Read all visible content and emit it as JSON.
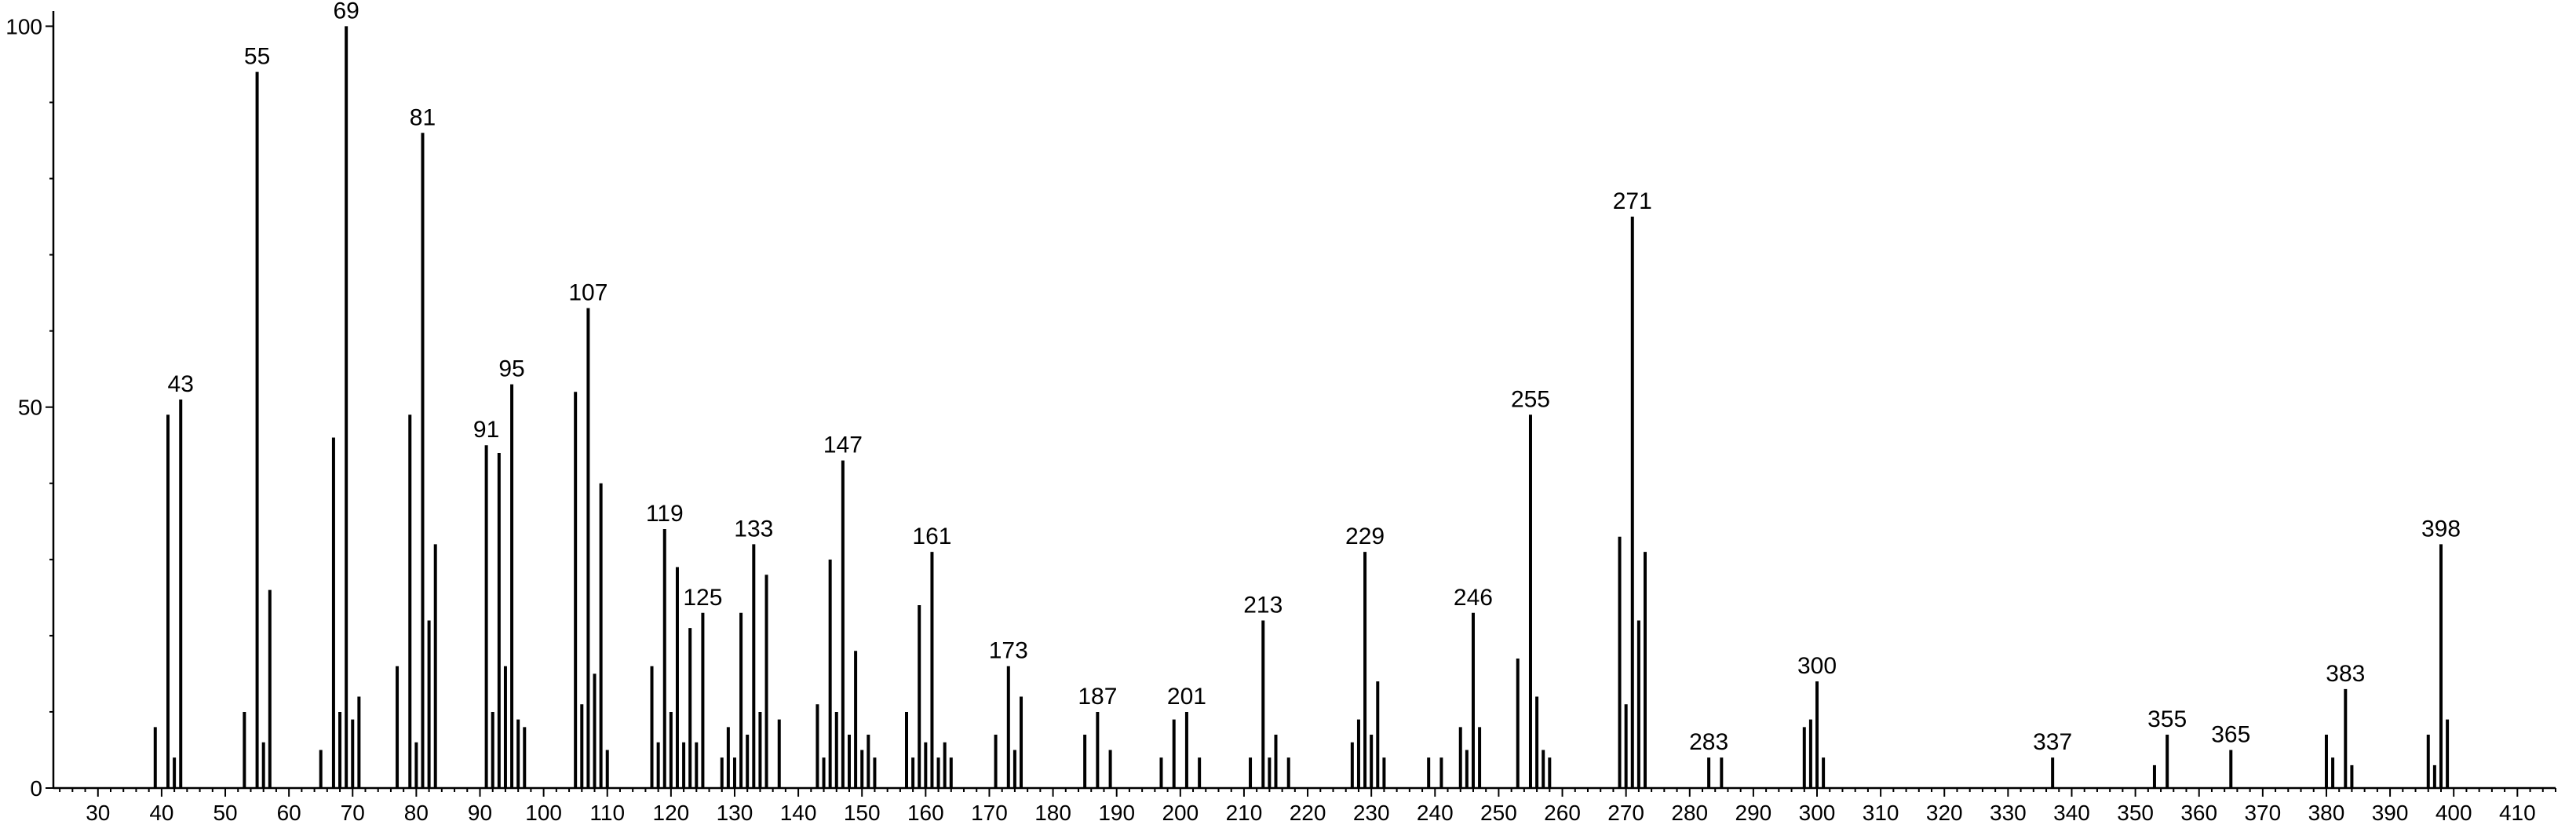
{
  "chart_data": {
    "type": "bar",
    "title": "",
    "xlabel": "",
    "ylabel": "",
    "xlim": [
      23,
      416
    ],
    "ylim": [
      0,
      102
    ],
    "xticks": [
      30,
      40,
      50,
      60,
      70,
      80,
      90,
      100,
      110,
      120,
      130,
      140,
      150,
      160,
      170,
      180,
      190,
      200,
      210,
      220,
      230,
      240,
      250,
      260,
      270,
      280,
      290,
      300,
      310,
      320,
      330,
      340,
      350,
      360,
      370,
      380,
      390,
      400,
      410
    ],
    "yticks": [
      0,
      50,
      100
    ],
    "grid": false,
    "legend": "none",
    "peaks": [
      {
        "x": 39,
        "y": 8
      },
      {
        "x": 41,
        "y": 49
      },
      {
        "x": 42,
        "y": 4
      },
      {
        "x": 43,
        "y": 51,
        "label": "43"
      },
      {
        "x": 53,
        "y": 10
      },
      {
        "x": 55,
        "y": 94,
        "label": "55"
      },
      {
        "x": 56,
        "y": 6
      },
      {
        "x": 57,
        "y": 26
      },
      {
        "x": 65,
        "y": 5
      },
      {
        "x": 67,
        "y": 46
      },
      {
        "x": 68,
        "y": 10
      },
      {
        "x": 69,
        "y": 100,
        "label": "69"
      },
      {
        "x": 70,
        "y": 9
      },
      {
        "x": 71,
        "y": 12
      },
      {
        "x": 77,
        "y": 16
      },
      {
        "x": 79,
        "y": 49
      },
      {
        "x": 80,
        "y": 6
      },
      {
        "x": 81,
        "y": 86,
        "label": "81"
      },
      {
        "x": 82,
        "y": 22
      },
      {
        "x": 83,
        "y": 32
      },
      {
        "x": 91,
        "y": 45,
        "label": "91"
      },
      {
        "x": 92,
        "y": 10
      },
      {
        "x": 93,
        "y": 44
      },
      {
        "x": 94,
        "y": 16
      },
      {
        "x": 95,
        "y": 53,
        "label": "95"
      },
      {
        "x": 96,
        "y": 9
      },
      {
        "x": 97,
        "y": 8
      },
      {
        "x": 105,
        "y": 52
      },
      {
        "x": 106,
        "y": 11
      },
      {
        "x": 107,
        "y": 63,
        "label": "107"
      },
      {
        "x": 108,
        "y": 15
      },
      {
        "x": 109,
        "y": 40
      },
      {
        "x": 110,
        "y": 5
      },
      {
        "x": 117,
        "y": 16
      },
      {
        "x": 118,
        "y": 6
      },
      {
        "x": 119,
        "y": 34,
        "label": "119"
      },
      {
        "x": 120,
        "y": 10
      },
      {
        "x": 121,
        "y": 29
      },
      {
        "x": 122,
        "y": 6
      },
      {
        "x": 123,
        "y": 21
      },
      {
        "x": 124,
        "y": 6
      },
      {
        "x": 125,
        "y": 23,
        "label": "125"
      },
      {
        "x": 128,
        "y": 4
      },
      {
        "x": 129,
        "y": 8
      },
      {
        "x": 130,
        "y": 4
      },
      {
        "x": 131,
        "y": 23
      },
      {
        "x": 132,
        "y": 7
      },
      {
        "x": 133,
        "y": 32,
        "label": "133"
      },
      {
        "x": 134,
        "y": 10
      },
      {
        "x": 135,
        "y": 28
      },
      {
        "x": 137,
        "y": 9
      },
      {
        "x": 143,
        "y": 11
      },
      {
        "x": 144,
        "y": 4
      },
      {
        "x": 145,
        "y": 30
      },
      {
        "x": 146,
        "y": 10
      },
      {
        "x": 147,
        "y": 43,
        "label": "147"
      },
      {
        "x": 148,
        "y": 7
      },
      {
        "x": 149,
        "y": 18
      },
      {
        "x": 150,
        "y": 5
      },
      {
        "x": 151,
        "y": 7
      },
      {
        "x": 152,
        "y": 4
      },
      {
        "x": 157,
        "y": 10
      },
      {
        "x": 158,
        "y": 4
      },
      {
        "x": 159,
        "y": 24
      },
      {
        "x": 160,
        "y": 6
      },
      {
        "x": 161,
        "y": 31,
        "label": "161"
      },
      {
        "x": 162,
        "y": 4
      },
      {
        "x": 163,
        "y": 6
      },
      {
        "x": 164,
        "y": 4
      },
      {
        "x": 171,
        "y": 7
      },
      {
        "x": 173,
        "y": 16,
        "label": "173"
      },
      {
        "x": 174,
        "y": 5
      },
      {
        "x": 175,
        "y": 12
      },
      {
        "x": 185,
        "y": 7
      },
      {
        "x": 187,
        "y": 10,
        "label": "187"
      },
      {
        "x": 189,
        "y": 5
      },
      {
        "x": 197,
        "y": 4
      },
      {
        "x": 199,
        "y": 9
      },
      {
        "x": 201,
        "y": 10,
        "label": "201"
      },
      {
        "x": 203,
        "y": 4
      },
      {
        "x": 211,
        "y": 4
      },
      {
        "x": 213,
        "y": 22,
        "label": "213"
      },
      {
        "x": 214,
        "y": 4
      },
      {
        "x": 215,
        "y": 7
      },
      {
        "x": 217,
        "y": 4
      },
      {
        "x": 227,
        "y": 6
      },
      {
        "x": 228,
        "y": 9
      },
      {
        "x": 229,
        "y": 31,
        "label": "229"
      },
      {
        "x": 230,
        "y": 7
      },
      {
        "x": 231,
        "y": 14
      },
      {
        "x": 232,
        "y": 4
      },
      {
        "x": 239,
        "y": 4
      },
      {
        "x": 241,
        "y": 4
      },
      {
        "x": 244,
        "y": 8
      },
      {
        "x": 245,
        "y": 5
      },
      {
        "x": 246,
        "y": 23,
        "label": "246"
      },
      {
        "x": 247,
        "y": 8
      },
      {
        "x": 253,
        "y": 17
      },
      {
        "x": 255,
        "y": 49,
        "label": "255"
      },
      {
        "x": 256,
        "y": 12
      },
      {
        "x": 257,
        "y": 5
      },
      {
        "x": 258,
        "y": 4
      },
      {
        "x": 269,
        "y": 33
      },
      {
        "x": 270,
        "y": 11
      },
      {
        "x": 271,
        "y": 75,
        "label": "271"
      },
      {
        "x": 272,
        "y": 22
      },
      {
        "x": 273,
        "y": 31
      },
      {
        "x": 283,
        "y": 4,
        "label": "283"
      },
      {
        "x": 285,
        "y": 4
      },
      {
        "x": 298,
        "y": 8
      },
      {
        "x": 299,
        "y": 9
      },
      {
        "x": 300,
        "y": 14,
        "label": "300"
      },
      {
        "x": 301,
        "y": 4
      },
      {
        "x": 337,
        "y": 4,
        "label": "337"
      },
      {
        "x": 353,
        "y": 3
      },
      {
        "x": 355,
        "y": 7,
        "label": "355"
      },
      {
        "x": 365,
        "y": 5,
        "label": "365"
      },
      {
        "x": 380,
        "y": 7
      },
      {
        "x": 381,
        "y": 4
      },
      {
        "x": 383,
        "y": 13,
        "label": "383"
      },
      {
        "x": 384,
        "y": 3
      },
      {
        "x": 396,
        "y": 7
      },
      {
        "x": 397,
        "y": 3
      },
      {
        "x": 398,
        "y": 32,
        "label": "398"
      },
      {
        "x": 399,
        "y": 9
      }
    ]
  }
}
